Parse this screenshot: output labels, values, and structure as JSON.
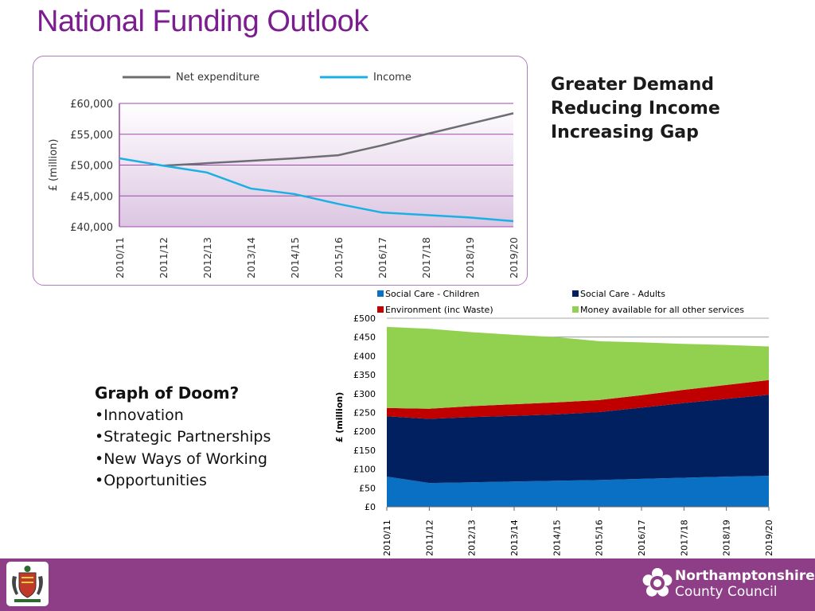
{
  "slide": {
    "title": "National Funding Outlook",
    "side_points": [
      "Greater Demand",
      "Reducing Income",
      "Increasing Gap"
    ],
    "doom_heading": "Graph of Doom?",
    "doom_items": [
      "•Innovation",
      "•Strategic Partnerships",
      "•New Ways of Working",
      "•Opportunities"
    ],
    "footer_org_line1": "Northamptonshire",
    "footer_org_line2": "County Council",
    "colors": {
      "title": "#7b1d8f",
      "footer": "#8e3e87",
      "frame": "#b07cc0"
    },
    "icons": [
      "coat-of-arms-icon",
      "rose-logo-icon"
    ]
  },
  "chart_data": [
    {
      "type": "line",
      "title": "",
      "ylabel": "£ (million)",
      "xlabel": "",
      "x": [
        "2010/11",
        "2011/12",
        "2012/13",
        "2013/14",
        "2014/15",
        "2015/16",
        "2016/17",
        "2017/18",
        "2018/19",
        "2019/20"
      ],
      "ylim": [
        40000,
        60000
      ],
      "yticks": [
        40000,
        45000,
        50000,
        55000,
        60000
      ],
      "ytick_labels": [
        "£40,000",
        "£45,000",
        "£50,000",
        "£55,000",
        "£60,000"
      ],
      "grid": true,
      "legend": "top",
      "series": [
        {
          "name": "Net expenditure",
          "color": "#6d6e71",
          "values": [
            null,
            49900,
            50300,
            50700,
            51100,
            51600,
            53200,
            55000,
            56700,
            58400
          ]
        },
        {
          "name": "Income",
          "color": "#1ab0e4",
          "values": [
            51100,
            49900,
            48800,
            46200,
            45300,
            43700,
            42300,
            41900,
            41500,
            40900
          ]
        }
      ]
    },
    {
      "type": "area",
      "stacked": true,
      "title": "",
      "ylabel": "£ (million)",
      "xlabel": "",
      "x": [
        "2010/11",
        "2011/12",
        "2012/13",
        "2013/14",
        "2014/15",
        "2015/16",
        "2016/17",
        "2017/18",
        "2018/19",
        "2019/20"
      ],
      "ylim": [
        0,
        500
      ],
      "yticks": [
        0,
        50,
        100,
        150,
        200,
        250,
        300,
        350,
        400,
        450,
        500
      ],
      "ytick_labels": [
        "£0",
        "£50",
        "£100",
        "£150",
        "£200",
        "£250",
        "£300",
        "£350",
        "£400",
        "£450",
        "£500"
      ],
      "grid": true,
      "legend": "top",
      "series": [
        {
          "name": "Social Care - Children",
          "color": "#0a70c4",
          "values": [
            80,
            63,
            65,
            67,
            69,
            71,
            74,
            77,
            80,
            82
          ]
        },
        {
          "name": "Social Care - Adults",
          "color": "#002060",
          "values": [
            160,
            170,
            173,
            174,
            176,
            180,
            189,
            198,
            206,
            215
          ]
        },
        {
          "name": "Environment (inc Waste)",
          "color": "#c00000",
          "values": [
            22,
            27,
            29,
            31,
            32,
            32,
            33,
            35,
            37,
            39
          ]
        },
        {
          "name": "Money available for all other services",
          "color": "#92d050",
          "values": [
            215,
            212,
            196,
            184,
            173,
            156,
            140,
            122,
            106,
            89
          ]
        }
      ]
    }
  ]
}
